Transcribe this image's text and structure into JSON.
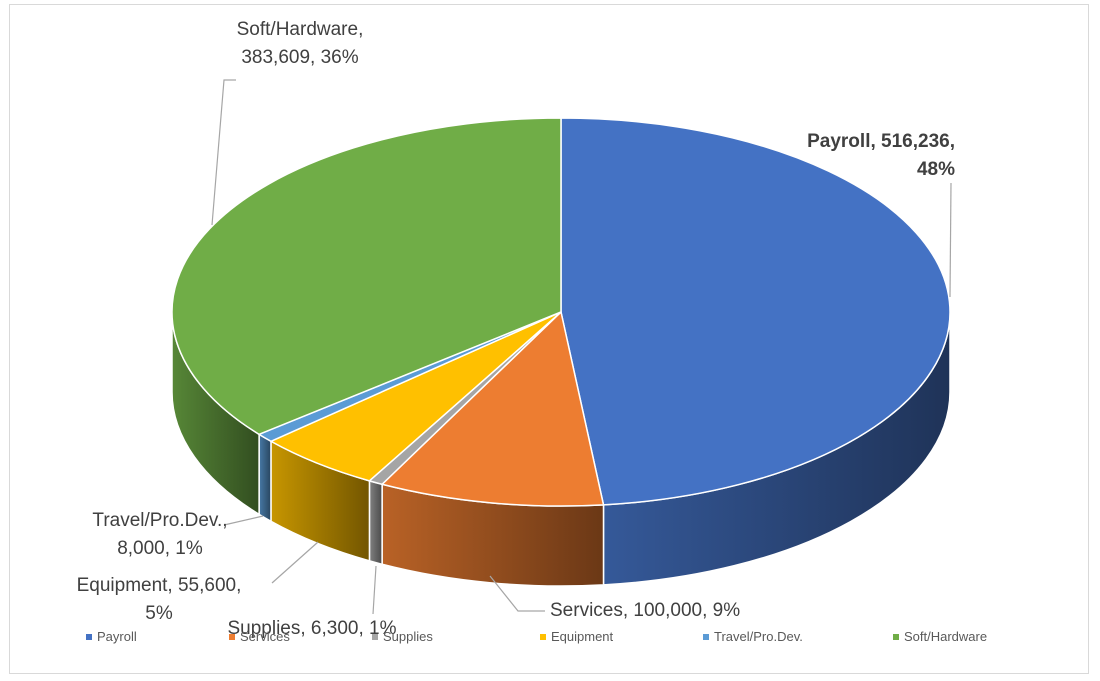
{
  "chart_data": {
    "type": "pie",
    "style": "3d",
    "title": "",
    "categories": [
      "Payroll",
      "Services",
      "Supplies",
      "Equipment",
      "Travel/Pro.Dev.",
      "Soft/Hardware"
    ],
    "values": [
      516236,
      100000,
      6300,
      55600,
      8000,
      383609
    ],
    "colors": [
      "#4472C4",
      "#ED7D31",
      "#A5A5A5",
      "#FFC000",
      "#5B9BD5",
      "#70AD47"
    ],
    "legend": "bottom",
    "slices": [
      {
        "name": "Payroll",
        "label_lines": [
          "Payroll, 516,236,",
          "48%"
        ]
      },
      {
        "name": "Services",
        "label_lines": [
          "Services, 100,000, 9%"
        ]
      },
      {
        "name": "Supplies",
        "label_lines": [
          "Supplies, 6,300, 1%"
        ]
      },
      {
        "name": "Equipment",
        "label_lines": [
          "Equipment, 55,600,",
          "5%"
        ]
      },
      {
        "name": "Travel/Pro.Dev.",
        "label_lines": [
          "Travel/Pro.Dev.,",
          "8,000, 1%"
        ]
      },
      {
        "name": "Soft/Hardware",
        "label_lines": [
          "Soft/Hardware,",
          "383,609, 36%"
        ]
      }
    ]
  }
}
